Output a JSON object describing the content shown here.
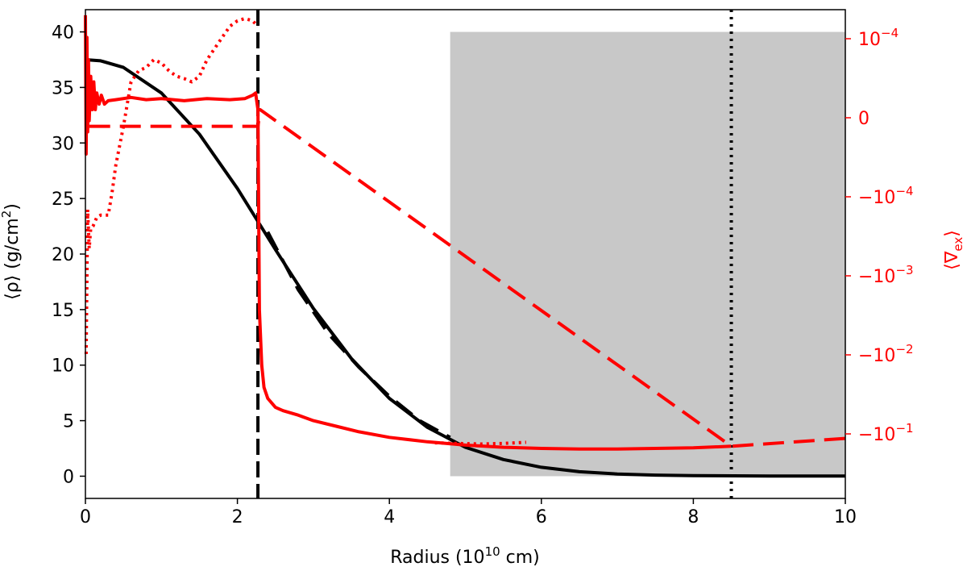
{
  "chart_data": {
    "type": "line",
    "title": "",
    "xlabel": {
      "pre": "Radius (10",
      "sup": "10",
      "post": " cm)"
    },
    "ylabel_left": {
      "pre": "⟨ρ⟩ (g/cm",
      "sup": "2",
      "post": ")"
    },
    "ylabel_right": {
      "pre": "⟨∇",
      "sub": "ex",
      "post": "⟩"
    },
    "xlim": [
      0,
      10
    ],
    "ylim_left": [
      -2,
      42
    ],
    "right_axis_scale": "symlog",
    "x_ticks": [
      "0",
      "2",
      "4",
      "6",
      "8",
      "10"
    ],
    "y_left_ticks": [
      "0",
      "5",
      "10",
      "15",
      "20",
      "25",
      "30",
      "35",
      "40"
    ],
    "y_right_ticks": [
      {
        "base": "10",
        "exp": "−4",
        "sign": ""
      },
      {
        "base": "0",
        "exp": "",
        "sign": ""
      },
      {
        "base": "10",
        "exp": "−4",
        "sign": "−"
      },
      {
        "base": "10",
        "exp": "−3",
        "sign": "−"
      },
      {
        "base": "10",
        "exp": "−2",
        "sign": "−"
      },
      {
        "base": "10",
        "exp": "−1",
        "sign": "−"
      }
    ],
    "shaded_region": {
      "x": [
        4.8,
        10
      ],
      "y": [
        0,
        40
      ],
      "color": "#c8c8c8"
    },
    "vertical_lines": [
      {
        "x": 2.27,
        "style": "dashed",
        "color": "#000000"
      },
      {
        "x": 8.5,
        "style": "dotted",
        "color": "#000000"
      }
    ],
    "colors": {
      "left_axis": "#000000",
      "right_axis": "#ff0000"
    },
    "series": [
      {
        "axis": "left",
        "color": "#000000",
        "style": "solid",
        "x": [
          0,
          0.2,
          0.5,
          1.0,
          1.5,
          2.0,
          2.5,
          3.0,
          3.5,
          4.0,
          4.5,
          5.0,
          5.5,
          6.0,
          6.5,
          7.0,
          7.5,
          8.0,
          9.0,
          10.0
        ],
        "y": [
          37.5,
          37.4,
          36.8,
          34.5,
          30.8,
          25.9,
          20.4,
          15.1,
          10.6,
          7.0,
          4.4,
          2.6,
          1.5,
          0.8,
          0.4,
          0.2,
          0.1,
          0.05,
          0.02,
          0.01
        ]
      },
      {
        "axis": "left",
        "color": "#000000",
        "style": "dashed",
        "x": [
          2.4,
          2.8,
          3.2,
          3.6,
          4.0,
          4.4,
          4.8
        ],
        "y": [
          22.0,
          16.8,
          12.8,
          9.8,
          7.2,
          5.0,
          3.5
        ]
      },
      {
        "axis": "left",
        "color": "#ff0000",
        "style": "solid",
        "x": [
          0.0,
          0.01,
          0.02,
          0.03,
          0.04,
          0.05,
          0.07,
          0.09,
          0.11,
          0.13,
          0.15,
          0.18,
          0.21,
          0.25,
          0.3,
          0.4,
          0.6,
          0.8,
          1.0,
          1.3,
          1.6,
          1.9,
          2.1,
          2.2,
          2.24,
          2.27,
          2.29,
          2.32,
          2.35,
          2.4,
          2.5,
          2.6,
          2.8,
          3.0,
          3.3,
          3.6,
          4.0,
          4.5,
          5.0,
          5.5,
          6.0,
          6.5,
          7.0,
          7.5,
          8.0,
          8.5
        ],
        "y": [
          41.5,
          29.0,
          39.5,
          31.0,
          37.5,
          32.0,
          36.0,
          33.0,
          35.5,
          33.0,
          34.5,
          33.5,
          34.3,
          33.5,
          33.8,
          33.9,
          34.1,
          33.9,
          34.0,
          33.8,
          34.0,
          33.9,
          34.0,
          34.3,
          34.5,
          33.0,
          15.0,
          10.0,
          8.0,
          7.0,
          6.2,
          5.9,
          5.5,
          5.0,
          4.5,
          4.0,
          3.5,
          3.1,
          2.8,
          2.6,
          2.5,
          2.45,
          2.45,
          2.5,
          2.55,
          2.7
        ]
      },
      {
        "axis": "left",
        "color": "#ff0000",
        "style": "dashed",
        "x": [
          0.05,
          2.27,
          2.3,
          8.5,
          10.0
        ],
        "y": [
          31.5,
          31.5,
          33.0,
          2.7,
          3.4
        ]
      },
      {
        "axis": "left",
        "color": "#ff0000",
        "style": "dotted",
        "x": [
          0.01,
          0.03,
          0.05,
          0.07,
          0.1,
          0.15,
          0.2,
          0.3,
          0.35,
          0.4,
          0.5,
          0.6,
          0.7,
          0.8,
          0.9,
          1.0,
          1.1,
          1.2,
          1.3,
          1.4,
          1.5,
          1.6,
          1.7,
          1.8,
          1.9,
          2.0,
          2.1,
          2.2,
          2.27
        ],
        "y": [
          11.0,
          24.0,
          20.5,
          22.3,
          22.5,
          23.3,
          23.5,
          23.5,
          25.5,
          28.0,
          31.5,
          35.5,
          36.5,
          36.8,
          37.5,
          37.2,
          36.5,
          36.0,
          35.8,
          35.5,
          36.0,
          37.5,
          38.5,
          39.5,
          40.5,
          41.0,
          41.2,
          41.0,
          40.5
        ]
      },
      {
        "axis": "left",
        "color": "#ff0000",
        "style": "dotted",
        "x": [
          4.6,
          4.9,
          5.2,
          5.5,
          5.8
        ],
        "y": [
          3.0,
          2.95,
          2.9,
          2.95,
          3.05
        ]
      }
    ]
  }
}
